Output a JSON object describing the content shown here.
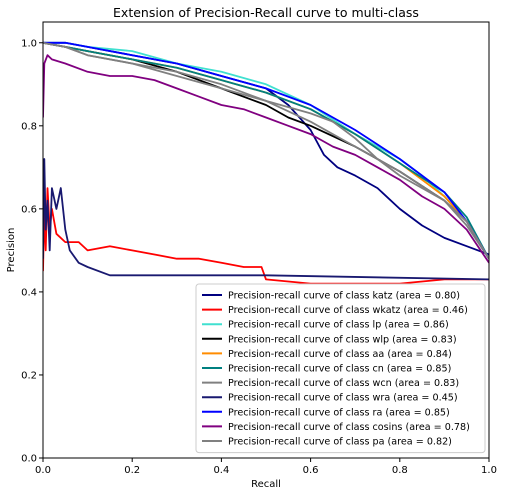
{
  "chart_data": {
    "type": "line",
    "title": "Extension of Precision-Recall curve to multi-class",
    "xlabel": "Recall",
    "ylabel": "Precision",
    "xlim": [
      0.0,
      1.0
    ],
    "ylim": [
      0.0,
      1.05
    ],
    "xticks": [
      "0.0",
      "0.2",
      "0.4",
      "0.6",
      "0.8",
      "1.0"
    ],
    "yticks": [
      "0.0",
      "0.2",
      "0.4",
      "0.6",
      "0.8",
      "1.0"
    ],
    "grid": false,
    "legend_position": "lower-right",
    "series": [
      {
        "name": "Precision-recall curve of class katz (area = 0.80)",
        "color": "#000080",
        "x": [
          0.0,
          0.01,
          0.05,
          0.1,
          0.2,
          0.3,
          0.4,
          0.5,
          0.55,
          0.6,
          0.63,
          0.66,
          0.7,
          0.75,
          0.8,
          0.85,
          0.9,
          0.95,
          1.0
        ],
        "y": [
          1.0,
          1.0,
          1.0,
          0.99,
          0.97,
          0.95,
          0.92,
          0.89,
          0.85,
          0.79,
          0.73,
          0.7,
          0.68,
          0.65,
          0.6,
          0.56,
          0.53,
          0.51,
          0.49
        ]
      },
      {
        "name": "Precision-recall curve of class wkatz (area = 0.46)",
        "color": "#ff0000",
        "x": [
          0.0,
          0.003,
          0.006,
          0.01,
          0.015,
          0.02,
          0.03,
          0.05,
          0.08,
          0.1,
          0.15,
          0.2,
          0.25,
          0.3,
          0.35,
          0.4,
          0.45,
          0.49,
          0.5,
          0.6,
          0.7,
          0.8,
          0.9,
          1.0
        ],
        "y": [
          0.45,
          0.6,
          0.5,
          0.65,
          0.55,
          0.6,
          0.54,
          0.52,
          0.52,
          0.5,
          0.51,
          0.5,
          0.49,
          0.48,
          0.48,
          0.47,
          0.46,
          0.46,
          0.43,
          0.42,
          0.42,
          0.42,
          0.43,
          0.43
        ]
      },
      {
        "name": "Precision-recall curve of class lp (area = 0.86)",
        "color": "#40e0d0",
        "x": [
          0.0,
          0.05,
          0.1,
          0.2,
          0.3,
          0.4,
          0.5,
          0.6,
          0.7,
          0.8,
          0.85,
          0.9,
          0.95,
          1.0
        ],
        "y": [
          1.0,
          1.0,
          0.99,
          0.98,
          0.95,
          0.93,
          0.9,
          0.85,
          0.78,
          0.72,
          0.68,
          0.63,
          0.57,
          0.48
        ]
      },
      {
        "name": "Precision-recall curve of class wlp (area = 0.83)",
        "color": "#000000",
        "x": [
          0.0,
          0.05,
          0.1,
          0.2,
          0.3,
          0.4,
          0.5,
          0.55,
          0.6,
          0.7,
          0.8,
          0.9,
          0.95,
          1.0
        ],
        "y": [
          1.0,
          0.99,
          0.98,
          0.96,
          0.93,
          0.89,
          0.85,
          0.82,
          0.8,
          0.75,
          0.69,
          0.62,
          0.57,
          0.48
        ]
      },
      {
        "name": "Precision-recall curve of class aa (area = 0.84)",
        "color": "#ff8c00",
        "x": [
          0.0,
          0.05,
          0.1,
          0.2,
          0.3,
          0.4,
          0.5,
          0.6,
          0.7,
          0.8,
          0.9,
          0.95,
          1.0
        ],
        "y": [
          1.0,
          0.99,
          0.98,
          0.96,
          0.94,
          0.91,
          0.88,
          0.84,
          0.78,
          0.71,
          0.63,
          0.57,
          0.48
        ]
      },
      {
        "name": "Precision-recall curve of class cn (area = 0.85)",
        "color": "#008080",
        "x": [
          0.0,
          0.05,
          0.1,
          0.2,
          0.3,
          0.4,
          0.5,
          0.6,
          0.7,
          0.8,
          0.9,
          0.95,
          1.0
        ],
        "y": [
          1.0,
          0.99,
          0.98,
          0.96,
          0.94,
          0.91,
          0.88,
          0.84,
          0.78,
          0.71,
          0.64,
          0.58,
          0.48
        ]
      },
      {
        "name": "Precision-recall curve of class wcn (area = 0.83)",
        "color": "#808080",
        "x": [
          0.0,
          0.05,
          0.1,
          0.2,
          0.3,
          0.4,
          0.5,
          0.6,
          0.7,
          0.8,
          0.9,
          0.95,
          1.0
        ],
        "y": [
          1.0,
          0.99,
          0.97,
          0.95,
          0.92,
          0.89,
          0.86,
          0.81,
          0.75,
          0.69,
          0.62,
          0.56,
          0.48
        ]
      },
      {
        "name": "Precision-recall curve of class wra (area = 0.45)",
        "color": "#191970",
        "x": [
          0.0,
          0.003,
          0.006,
          0.01,
          0.015,
          0.02,
          0.03,
          0.04,
          0.05,
          0.06,
          0.08,
          0.1,
          0.15,
          0.5,
          1.0
        ],
        "y": [
          0.48,
          0.72,
          0.55,
          0.62,
          0.5,
          0.65,
          0.6,
          0.65,
          0.55,
          0.5,
          0.47,
          0.46,
          0.44,
          0.44,
          0.43
        ]
      },
      {
        "name": "Precision-recall curve of class ra (area = 0.85)",
        "color": "#0000ff",
        "x": [
          0.0,
          0.05,
          0.1,
          0.2,
          0.3,
          0.4,
          0.5,
          0.6,
          0.7,
          0.8,
          0.85,
          0.9,
          0.95,
          1.0
        ],
        "y": [
          1.0,
          1.0,
          0.99,
          0.97,
          0.95,
          0.92,
          0.89,
          0.85,
          0.79,
          0.72,
          0.68,
          0.64,
          0.57,
          0.48
        ]
      },
      {
        "name": "Precision-recall curve of class cosins (area = 0.78)",
        "color": "#800080",
        "x": [
          0.0,
          0.003,
          0.01,
          0.02,
          0.05,
          0.1,
          0.15,
          0.2,
          0.25,
          0.3,
          0.35,
          0.4,
          0.45,
          0.5,
          0.55,
          0.6,
          0.65,
          0.7,
          0.75,
          0.8,
          0.85,
          0.9,
          0.95,
          1.0
        ],
        "y": [
          0.82,
          0.95,
          0.97,
          0.96,
          0.95,
          0.93,
          0.92,
          0.92,
          0.91,
          0.89,
          0.87,
          0.85,
          0.84,
          0.82,
          0.8,
          0.78,
          0.75,
          0.73,
          0.7,
          0.67,
          0.63,
          0.6,
          0.55,
          0.47
        ]
      },
      {
        "name": "Precision-recall curve of class pa (area = 0.82)",
        "color": "#808080",
        "x": [
          0.0,
          0.05,
          0.1,
          0.2,
          0.3,
          0.4,
          0.5,
          0.6,
          0.65,
          0.7,
          0.75,
          0.8,
          0.85,
          0.9,
          0.95,
          1.0
        ],
        "y": [
          1.0,
          0.99,
          0.97,
          0.95,
          0.93,
          0.9,
          0.86,
          0.83,
          0.81,
          0.77,
          0.72,
          0.68,
          0.65,
          0.62,
          0.57,
          0.48
        ]
      }
    ]
  }
}
